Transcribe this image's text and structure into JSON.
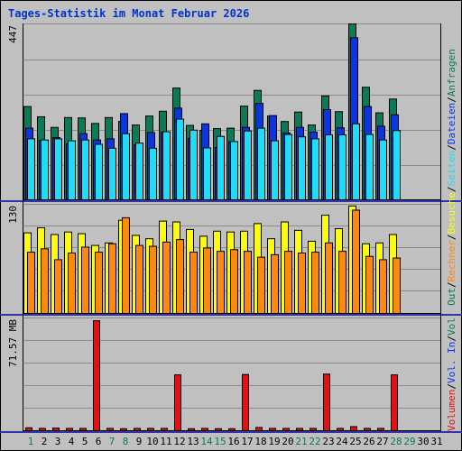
{
  "chart_data": {
    "type": "bar",
    "title": "Tages-Statistik im Monat Februar 2026",
    "days": [
      "1",
      "2",
      "3",
      "4",
      "5",
      "6",
      "7",
      "8",
      "9",
      "10",
      "11",
      "12",
      "13",
      "14",
      "15",
      "16",
      "17",
      "18",
      "19",
      "20",
      "21",
      "22",
      "23",
      "24",
      "25",
      "26",
      "27",
      "28",
      "29",
      "30",
      "31"
    ],
    "weekend_days": [
      "1",
      "7",
      "8",
      "14",
      "15",
      "21",
      "22",
      "28",
      "29"
    ],
    "grid": true,
    "panels": [
      {
        "name": "top",
        "scale_label": "447",
        "ylim": [
          0,
          447
        ],
        "series": [
          {
            "name": "Anfragen",
            "color": "#0b7a57",
            "values": [
              237,
              211,
              184,
              209,
              208,
              194,
              209,
              199,
              190,
              213,
              225,
              284,
              189,
              176,
              181,
              182,
              238,
              278,
              213,
              199,
              223,
              190,
              264,
              224,
              447,
              286,
              221,
              256,
              null,
              null,
              null
            ]
          },
          {
            "name": "Dateien",
            "color": "#0a35e0",
            "values": [
              182,
              151,
              158,
              142,
              168,
              152,
              155,
              219,
              140,
              171,
              171,
              233,
              156,
              193,
              133,
              147,
              184,
              245,
              214,
              170,
              184,
              172,
              229,
              183,
              412,
              237,
              187,
              216,
              null,
              null,
              null
            ]
          },
          {
            "name": "Seiten",
            "color": "#21dcf6",
            "values": [
              155,
              152,
              155,
              150,
              152,
              141,
              131,
              168,
              144,
              131,
              173,
              205,
              177,
              132,
              161,
              148,
              175,
              182,
              150,
              166,
              160,
              155,
              165,
              165,
              193,
              166,
              152,
              176,
              null,
              null,
              null
            ]
          }
        ]
      },
      {
        "name": "middle",
        "scale_label": "130",
        "ylim": [
          0,
          130
        ],
        "series": [
          {
            "name": "Besuche",
            "color": "#fafa13",
            "values": [
              96,
              102,
              94,
              97,
              95,
              81,
              84,
              111,
              93,
              89,
              110,
              109,
              100,
              92,
              98,
              97,
              98,
              107,
              89,
              109,
              99,
              86,
              117,
              101,
              128,
              83,
              84,
              94,
              null,
              null,
              null
            ]
          },
          {
            "name": "Rechner",
            "color": "#ff8811",
            "values": [
              73,
              77,
              64,
              72,
              79,
              73,
              83,
              114,
              81,
              80,
              85,
              88,
              73,
              78,
              74,
              76,
              74,
              67,
              70,
              74,
              72,
              73,
              84,
              74,
              123,
              68,
              64,
              66,
              null,
              null,
              null
            ]
          }
        ]
      },
      {
        "name": "bottom",
        "scale_label": "71.57 MB",
        "ylim_mb": [
          0,
          143.14
        ],
        "series": [
          {
            "name": "Volumen",
            "color": "#e41012",
            "values": [
              3.8,
              3.0,
              3.5,
              3.0,
              3.0,
              143.1,
              3.0,
              2.6,
              3.0,
              3.0,
              3.0,
              72.6,
              2.6,
              3.0,
              2.6,
              2.6,
              73.1,
              4.2,
              3.0,
              3.0,
              3.0,
              3.0,
              73.6,
              3.0,
              5.3,
              3.0,
              3.0,
              72.6,
              null,
              null,
              null
            ]
          }
        ]
      }
    ],
    "side_legend": [
      {
        "label": "Volumen",
        "color": "#e41012"
      },
      {
        "label": "Vol. In",
        "color": "#0a35e0"
      },
      {
        "label": "Vol. Out",
        "color": "#0b7a57"
      },
      {
        "label": "Rechner",
        "color": "#ff8811"
      },
      {
        "label": "Besuche",
        "color": "#fafa13"
      },
      {
        "label": "Seiten",
        "color": "#21dcf6"
      },
      {
        "label": "Dateien",
        "color": "#0a35e0"
      },
      {
        "label": "Anfragen",
        "color": "#0b7a57"
      }
    ],
    "colors": {
      "title": "#0033cc",
      "weekday_label": "#000000",
      "weekend_label": "#0b7a57",
      "separator": "#3333aa",
      "background": "#c0c0c0"
    }
  }
}
